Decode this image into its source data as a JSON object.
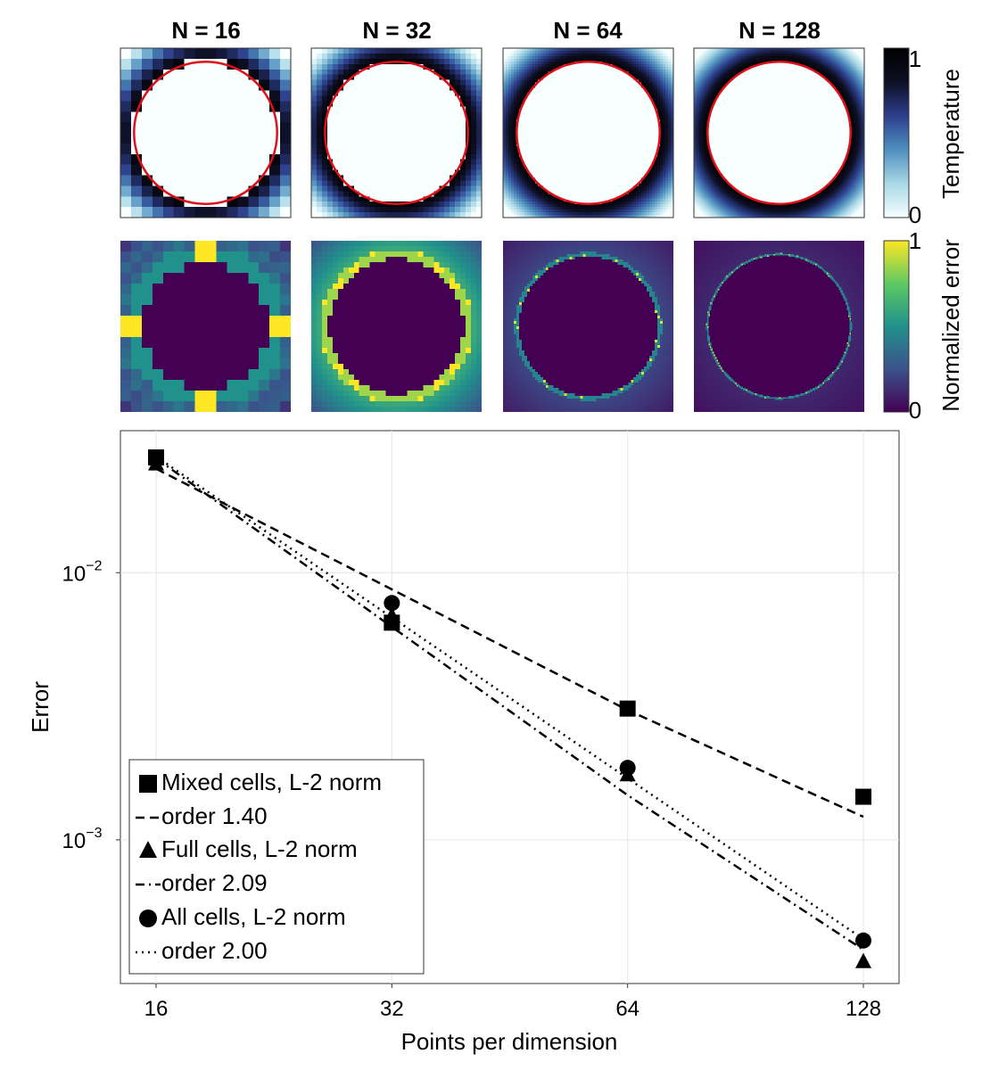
{
  "panels": [
    {
      "title": "N = 16",
      "n": 16
    },
    {
      "title": "N = 32",
      "n": 32
    },
    {
      "title": "N = 64",
      "n": 64
    },
    {
      "title": "N = 128",
      "n": 128
    }
  ],
  "temperature_colorbar": {
    "label": "Temperature",
    "tick_top": "1",
    "tick_bottom": "0",
    "colormap": [
      "#f7ffff",
      "#a9d8e6",
      "#4f8fbf",
      "#2c3f8c",
      "#0e0f24",
      "#000000"
    ]
  },
  "error_colorbar": {
    "label": "Normalized error",
    "tick_top": "1",
    "tick_bottom": "0",
    "colormap": [
      "#440154",
      "#3b528b",
      "#21918c",
      "#5ec962",
      "#fde725"
    ]
  },
  "circle_color": "#e0101a",
  "chart_data": {
    "type": "scatter",
    "xlabel": "Points per dimension",
    "ylabel": "Error",
    "x_scale": "log2",
    "y_scale": "log10",
    "x": [
      16,
      32,
      64,
      128
    ],
    "x_ticks": [
      "16",
      "32",
      "64",
      "128"
    ],
    "y_ticks": [
      {
        "value": 0.01,
        "base": "10",
        "exp": "−2"
      },
      {
        "value": 0.001,
        "base": "10",
        "exp": "−3"
      }
    ],
    "ylim": [
      0.00029,
      0.034
    ],
    "grid": true,
    "legend_position": "bottom-left",
    "series": [
      {
        "name": "Mixed cells, L-2 norm",
        "marker": "square",
        "values": [
          0.027,
          0.0065,
          0.0031,
          0.00145
        ]
      },
      {
        "name": "order 1.40",
        "line": "dashed",
        "values": [
          0.0245,
          0.00866,
          0.00306,
          0.00122
        ]
      },
      {
        "name": "Full cells, L-2 norm",
        "marker": "triangle",
        "values": [
          0.0255,
          0.0069,
          0.00175,
          0.00035
        ]
      },
      {
        "name": "order 2.09",
        "line": "dashdot",
        "values": [
          0.0268,
          0.00627,
          0.00147,
          0.000388
        ]
      },
      {
        "name": "All cells, L-2 norm",
        "marker": "circle",
        "values": [
          0.0265,
          0.0077,
          0.00186,
          0.00042
        ]
      },
      {
        "name": "order 2.00",
        "line": "dotted",
        "values": [
          0.0272,
          0.0068,
          0.0017,
          0.000425
        ]
      }
    ]
  }
}
